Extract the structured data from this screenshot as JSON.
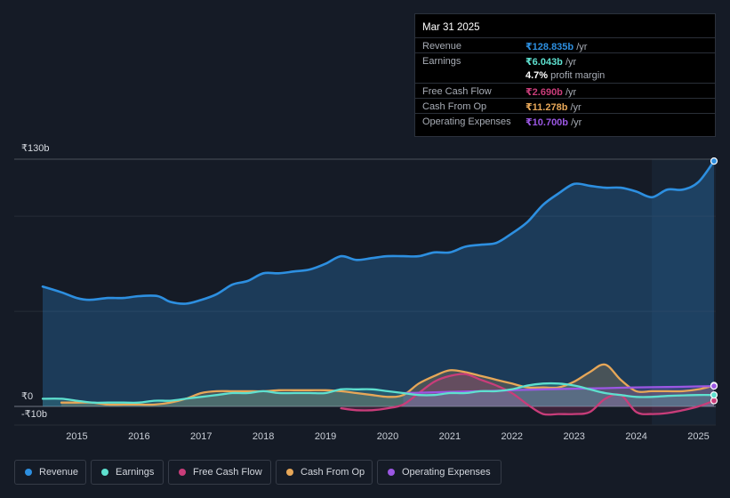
{
  "chart_data": {
    "type": "area",
    "title": "",
    "xlabel": "",
    "ylabel": "",
    "y_tick_labels": [
      "₹130b",
      "₹0",
      "-₹10b"
    ],
    "ylim": [
      -10,
      130
    ],
    "xlim": [
      2014.45,
      2025.25
    ],
    "x_ticks": [
      2015,
      2016,
      2017,
      2018,
      2019,
      2020,
      2021,
      2022,
      2023,
      2024,
      2025
    ],
    "forecast_start": 2024.25,
    "series": [
      {
        "name": "Revenue",
        "color": "#2d8fe0",
        "x": [
          2014.45,
          2014.75,
          2015.0,
          2015.2,
          2015.5,
          2015.75,
          2016.0,
          2016.3,
          2016.5,
          2016.75,
          2017.0,
          2017.25,
          2017.5,
          2017.75,
          2018.0,
          2018.25,
          2018.5,
          2018.75,
          2019.0,
          2019.25,
          2019.5,
          2019.75,
          2020.0,
          2020.25,
          2020.5,
          2020.75,
          2021.0,
          2021.25,
          2021.5,
          2021.75,
          2022.0,
          2022.25,
          2022.5,
          2022.75,
          2023.0,
          2023.25,
          2023.5,
          2023.75,
          2024.0,
          2024.25,
          2024.5,
          2024.75,
          2025.0,
          2025.25
        ],
        "y": [
          63,
          60,
          57,
          56,
          57,
          57,
          58,
          58,
          55,
          54,
          56,
          59,
          64,
          66,
          70,
          70,
          71,
          72,
          75,
          79,
          77,
          78,
          79,
          79,
          79,
          81,
          81,
          84,
          85,
          86,
          91,
          97,
          106,
          112,
          117,
          116,
          115,
          115,
          113,
          110,
          114,
          114,
          118,
          129
        ]
      },
      {
        "name": "Earnings",
        "color": "#5ee0cf",
        "x": [
          2014.45,
          2014.75,
          2015.0,
          2015.25,
          2015.5,
          2015.75,
          2016.0,
          2016.25,
          2016.5,
          2016.75,
          2017.0,
          2017.25,
          2017.5,
          2017.75,
          2018.0,
          2018.25,
          2018.5,
          2018.75,
          2019.0,
          2019.25,
          2019.5,
          2019.75,
          2020.0,
          2020.25,
          2020.5,
          2020.75,
          2021.0,
          2021.25,
          2021.5,
          2021.75,
          2022.0,
          2022.25,
          2022.5,
          2022.75,
          2023.0,
          2023.25,
          2023.5,
          2023.75,
          2024.0,
          2024.25,
          2024.5,
          2024.75,
          2025.0,
          2025.25
        ],
        "y": [
          4,
          4,
          3,
          2,
          2,
          2,
          2,
          3,
          3,
          4,
          5,
          6,
          7,
          7,
          8,
          7,
          7,
          7,
          7,
          9,
          9,
          9,
          8,
          7,
          6,
          6,
          7,
          7,
          8,
          8,
          9,
          11,
          12,
          12,
          11,
          9,
          7,
          6,
          5,
          5,
          5.5,
          5.8,
          6,
          6
        ]
      },
      {
        "name": "Free Cash Flow",
        "color": "#c93d7a",
        "x": [
          2019.25,
          2019.5,
          2019.75,
          2020.0,
          2020.25,
          2020.5,
          2020.75,
          2021.0,
          2021.25,
          2021.5,
          2021.75,
          2022.0,
          2022.25,
          2022.5,
          2022.75,
          2023.0,
          2023.25,
          2023.5,
          2023.75,
          2024.0,
          2024.25,
          2024.5,
          2024.75,
          2025.0,
          2025.25
        ],
        "y": [
          -1,
          -2,
          -2,
          -1,
          1,
          7,
          13,
          16,
          17,
          14,
          11,
          7,
          1,
          -4,
          -4,
          -4,
          -3,
          4,
          6,
          -3,
          -4,
          -3.5,
          -2,
          0,
          3
        ]
      },
      {
        "name": "Cash From Op",
        "color": "#e7a758",
        "x": [
          2014.75,
          2015.0,
          2015.25,
          2015.5,
          2015.75,
          2016.0,
          2016.25,
          2016.5,
          2016.75,
          2017.0,
          2017.25,
          2017.5,
          2017.75,
          2018.0,
          2018.25,
          2018.5,
          2018.75,
          2019.0,
          2019.25,
          2019.5,
          2019.75,
          2020.0,
          2020.25,
          2020.5,
          2020.75,
          2021.0,
          2021.25,
          2021.5,
          2021.75,
          2022.0,
          2022.25,
          2022.5,
          2022.75,
          2023.0,
          2023.25,
          2023.5,
          2023.75,
          2024.0,
          2024.25,
          2024.5,
          2024.75,
          2025.0,
          2025.25
        ],
        "y": [
          2,
          2,
          2,
          1,
          1,
          1,
          1,
          2,
          4,
          7,
          8,
          8,
          8,
          8,
          8.5,
          8.5,
          8.5,
          8.5,
          8,
          7,
          6,
          5,
          6,
          12,
          16,
          19,
          18,
          16,
          14,
          12,
          10,
          10,
          10,
          13,
          18,
          22,
          14,
          8,
          8,
          8,
          8,
          9,
          11
        ]
      },
      {
        "name": "Operating Expenses",
        "color": "#9b57e3",
        "x": [
          2020.25,
          2020.5,
          2020.75,
          2021.0,
          2021.5,
          2022.0,
          2022.5,
          2023.0,
          2023.5,
          2024.0,
          2024.5,
          2025.0,
          2025.25
        ],
        "y": [
          7,
          7.2,
          7.4,
          7.6,
          8,
          8.5,
          9,
          9.3,
          9.6,
          10,
          10.2,
          10.5,
          10.7
        ]
      }
    ]
  },
  "tooltip": {
    "date": "Mar 31 2025",
    "rows": [
      {
        "label": "Revenue",
        "value": "₹128.835b",
        "unit": "/yr",
        "color": "#2d8fe0"
      },
      {
        "label": "Earnings",
        "value": "₹6.043b",
        "unit": "/yr",
        "color": "#5ee0cf"
      },
      {
        "label": "",
        "value": "4.7%",
        "unit": "profit margin",
        "color": "#ffffff"
      },
      {
        "label": "Free Cash Flow",
        "value": "₹2.690b",
        "unit": "/yr",
        "color": "#c93d7a"
      },
      {
        "label": "Cash From Op",
        "value": "₹11.278b",
        "unit": "/yr",
        "color": "#e7a758"
      },
      {
        "label": "Operating Expenses",
        "value": "₹10.700b",
        "unit": "/yr",
        "color": "#9b57e3"
      }
    ]
  },
  "legend": [
    {
      "label": "Revenue",
      "color": "#2d8fe0"
    },
    {
      "label": "Earnings",
      "color": "#5ee0cf"
    },
    {
      "label": "Free Cash Flow",
      "color": "#c93d7a"
    },
    {
      "label": "Cash From Op",
      "color": "#e7a758"
    },
    {
      "label": "Operating Expenses",
      "color": "#9b57e3"
    }
  ]
}
